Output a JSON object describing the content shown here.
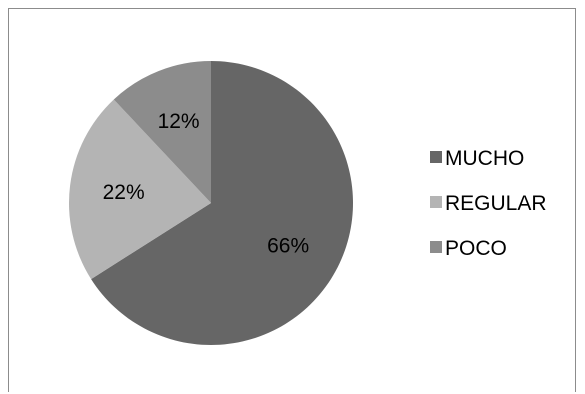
{
  "chart_data": {
    "type": "pie",
    "categories": [
      "MUCHO",
      "REGULAR",
      "POCO"
    ],
    "values": [
      66,
      22,
      12
    ],
    "labels": [
      "66%",
      "22%",
      "12%"
    ],
    "colors": [
      "#666666",
      "#b4b4b4",
      "#8c8c8c"
    ],
    "title": "",
    "legend_position": "right"
  }
}
